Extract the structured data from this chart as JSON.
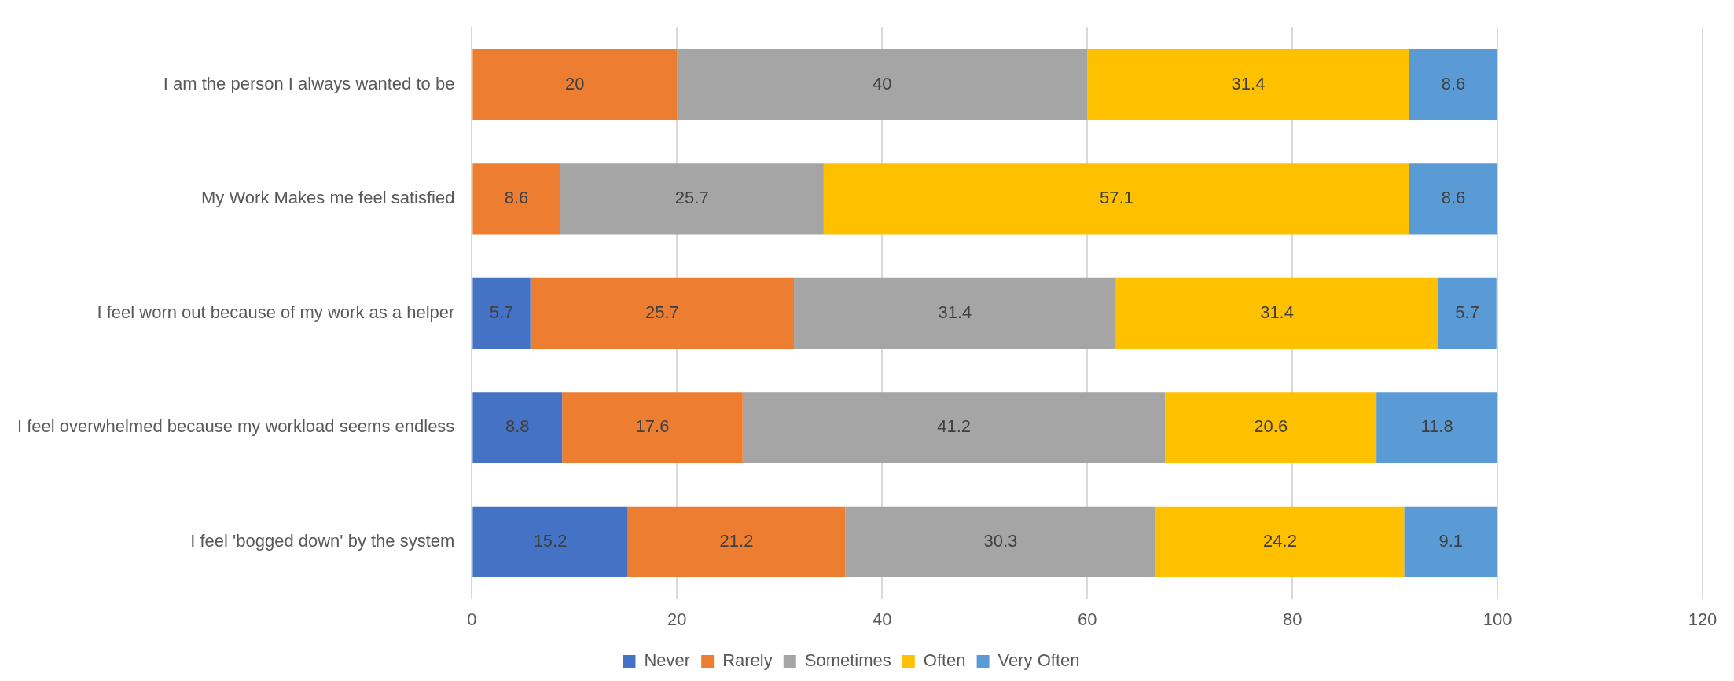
{
  "chart_data": {
    "type": "bar",
    "orientation": "horizontal",
    "stacked": true,
    "categories": [
      "I am the person I always wanted to be",
      "My Work Makes me feel satisfied",
      "I feel worn out because of my work as a helper",
      "I feel overwhelmed because my workload seems endless",
      "I feel 'bogged down' by the system"
    ],
    "series": [
      {
        "name": "Never",
        "color": "#4472c4",
        "values": [
          null,
          null,
          5.7,
          8.8,
          15.2
        ]
      },
      {
        "name": "Rarely",
        "color": "#ed7d31",
        "values": [
          20,
          8.6,
          25.7,
          17.6,
          21.2
        ]
      },
      {
        "name": "Sometimes",
        "color": "#a5a5a5",
        "values": [
          40,
          25.7,
          31.4,
          41.2,
          30.3
        ]
      },
      {
        "name": "Often",
        "color": "#ffc000",
        "values": [
          31.4,
          57.1,
          31.4,
          20.6,
          24.2
        ]
      },
      {
        "name": "Very Often",
        "color": "#5b9bd5",
        "values": [
          8.6,
          8.6,
          5.7,
          11.8,
          9.1
        ]
      }
    ],
    "xlim": [
      0,
      120
    ],
    "xticks": [
      0,
      20,
      40,
      60,
      80,
      100,
      120
    ],
    "grid": "x",
    "legend": "bottom",
    "data_labels": true
  }
}
